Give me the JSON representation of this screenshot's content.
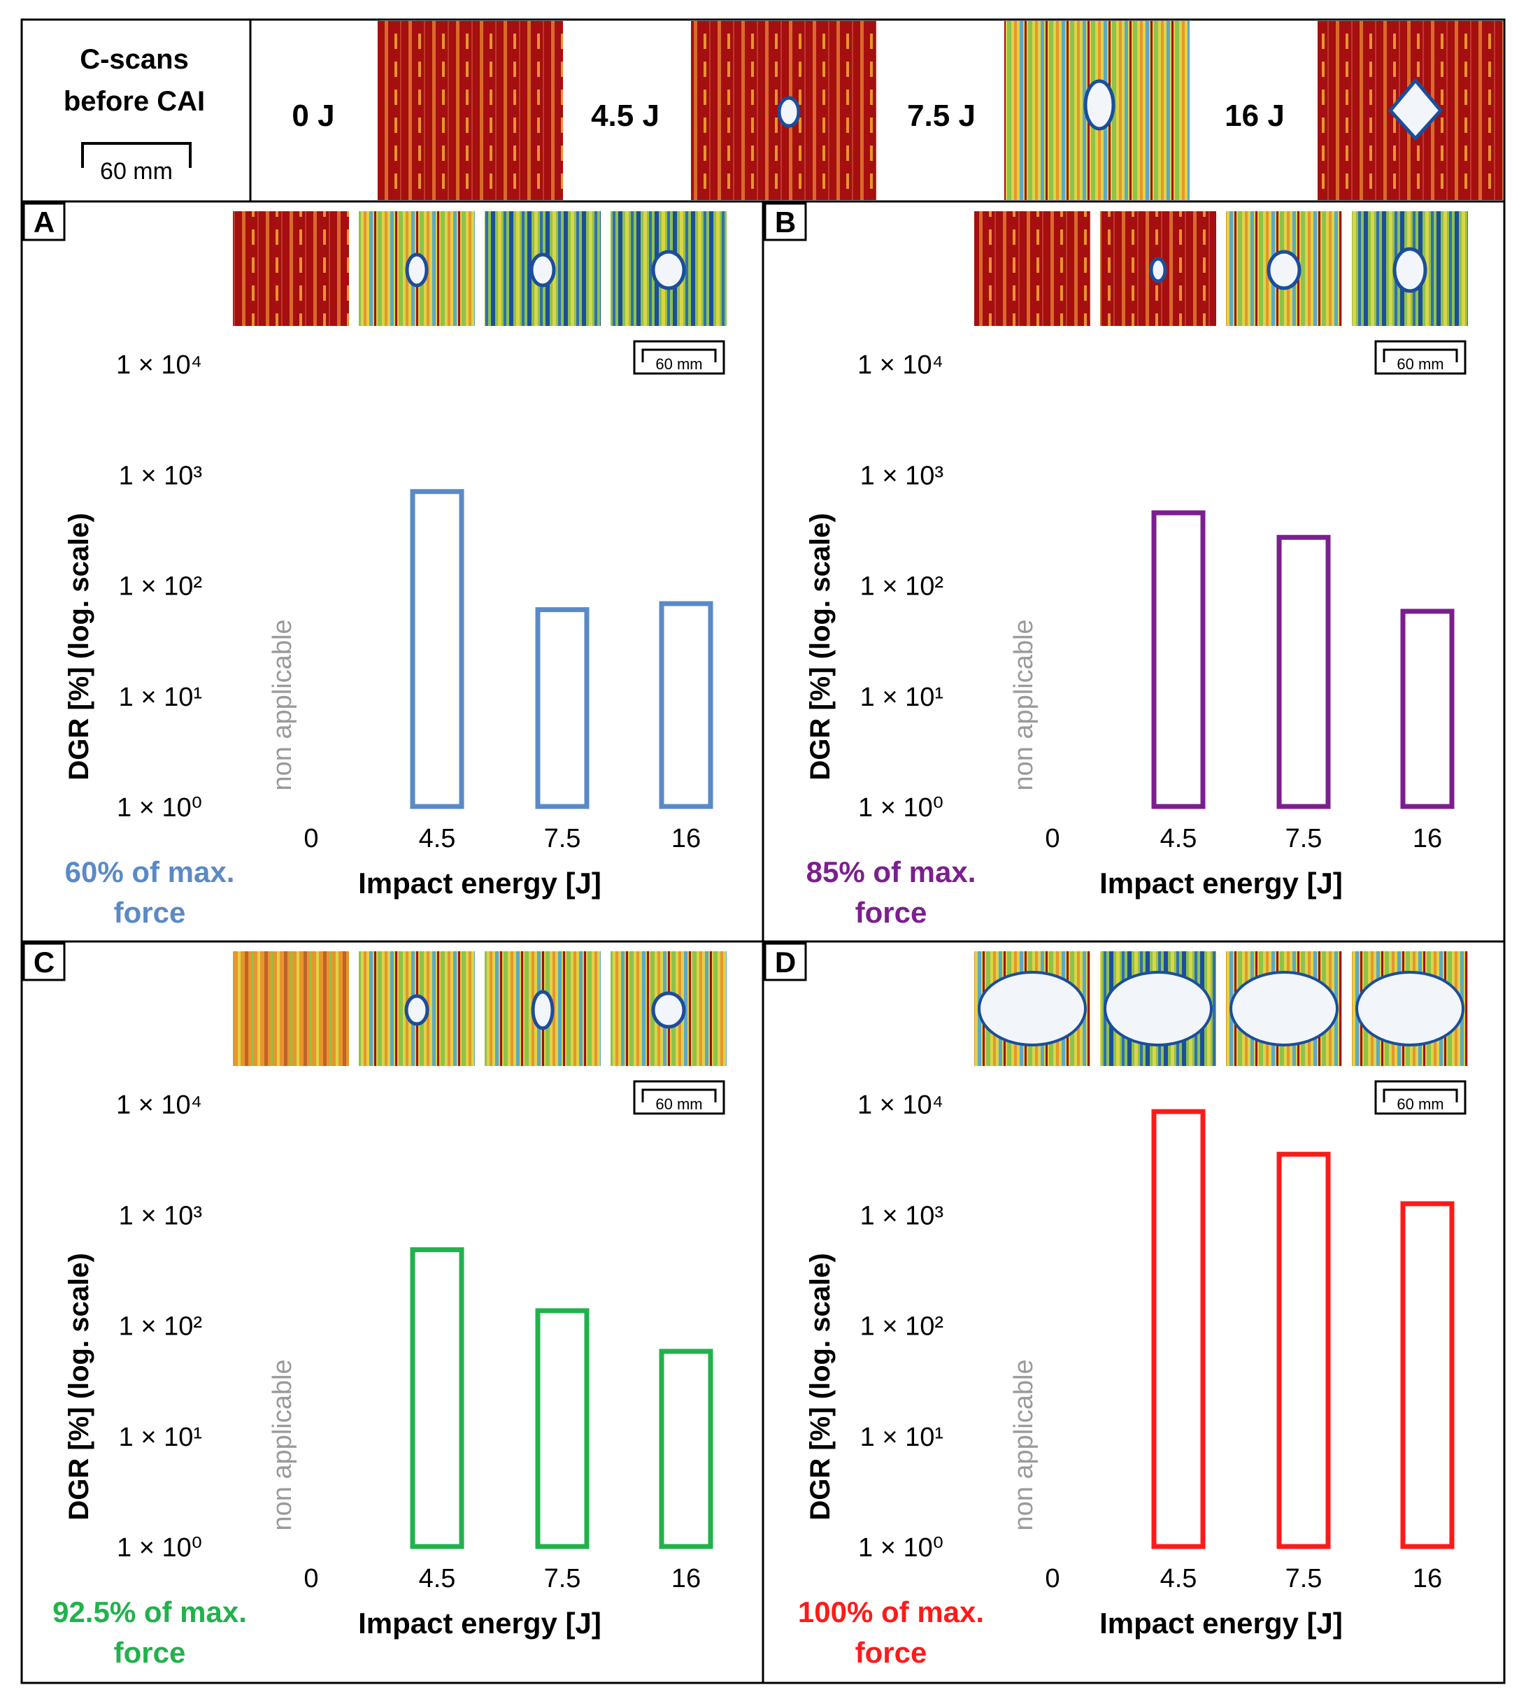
{
  "header": {
    "title_line1": "C-scans",
    "title_line2": "before CAI",
    "scale_label": "60 mm",
    "energies": [
      "0 J",
      "4.5 J",
      "7.5 J",
      "16 J"
    ]
  },
  "scan_palette": {
    "dark_red": "#a50f0f",
    "orange": "#e8952c",
    "yellow": "#dcd447",
    "green": "#8fc24a",
    "blue": "#1b4e9b",
    "white": "#f2f6fb"
  },
  "panels": [
    {
      "letter": "A",
      "color": "#5a8ac6",
      "caption_line1": "60% of max.",
      "caption_line2": "force",
      "scale_label": "60 mm",
      "na_label": "non applicable"
    },
    {
      "letter": "B",
      "color": "#7b1f8e",
      "caption_line1": "85% of max.",
      "caption_line2": "force",
      "scale_label": "60 mm",
      "na_label": "non applicable"
    },
    {
      "letter": "C",
      "color": "#22b14c",
      "caption_line1": "92.5% of max.",
      "caption_line2": "force",
      "scale_label": "60 mm",
      "na_label": "non applicable"
    },
    {
      "letter": "D",
      "color": "#ff1a1a",
      "caption_line1": "100% of max.",
      "caption_line2": "force",
      "scale_label": "60 mm",
      "na_label": "non applicable"
    }
  ],
  "chart_data": [
    {
      "type": "bar",
      "panel": "A",
      "title": "60% of max. force",
      "xlabel": "Impact energy [J]",
      "ylabel": "DGR [%] (log. scale)",
      "yscale": "log",
      "ylim": [
        1,
        10000
      ],
      "yticks": [
        "1 × 10⁰",
        "1 × 10¹",
        "1 × 10²",
        "1 × 10³",
        "1 × 10⁴"
      ],
      "categories": [
        "0",
        "4.5",
        "7.5",
        "16"
      ],
      "values": [
        null,
        700,
        60,
        68
      ],
      "annotation": "non applicable"
    },
    {
      "type": "bar",
      "panel": "B",
      "title": "85% of max. force",
      "xlabel": "Impact energy [J]",
      "ylabel": "DGR [%] (log. scale)",
      "yscale": "log",
      "ylim": [
        1,
        10000
      ],
      "yticks": [
        "1 × 10⁰",
        "1 × 10¹",
        "1 × 10²",
        "1 × 10³",
        "1 × 10⁴"
      ],
      "categories": [
        "0",
        "4.5",
        "7.5",
        "16"
      ],
      "values": [
        null,
        450,
        270,
        58
      ],
      "annotation": "non applicable"
    },
    {
      "type": "bar",
      "panel": "C",
      "title": "92.5% of max. force",
      "xlabel": "Impact energy [J]",
      "ylabel": "DGR [%] (log. scale)",
      "yscale": "log",
      "ylim": [
        1,
        10000
      ],
      "yticks": [
        "1 × 10⁰",
        "1 × 10¹",
        "1 × 10²",
        "1 × 10³",
        "1 × 10⁴"
      ],
      "categories": [
        "0",
        "4.5",
        "7.5",
        "16"
      ],
      "values": [
        null,
        480,
        135,
        58
      ],
      "annotation": "non applicable"
    },
    {
      "type": "bar",
      "panel": "D",
      "title": "100% of max. force",
      "xlabel": "Impact energy [J]",
      "ylabel": "DGR [%] (log. scale)",
      "yscale": "log",
      "ylim": [
        1,
        10000
      ],
      "yticks": [
        "1 × 10⁰",
        "1 × 10¹",
        "1 × 10²",
        "1 × 10³",
        "1 × 10⁴"
      ],
      "categories": [
        "0",
        "4.5",
        "7.5",
        "16"
      ],
      "values": [
        null,
        8500,
        3500,
        1250
      ],
      "annotation": "non applicable"
    }
  ]
}
